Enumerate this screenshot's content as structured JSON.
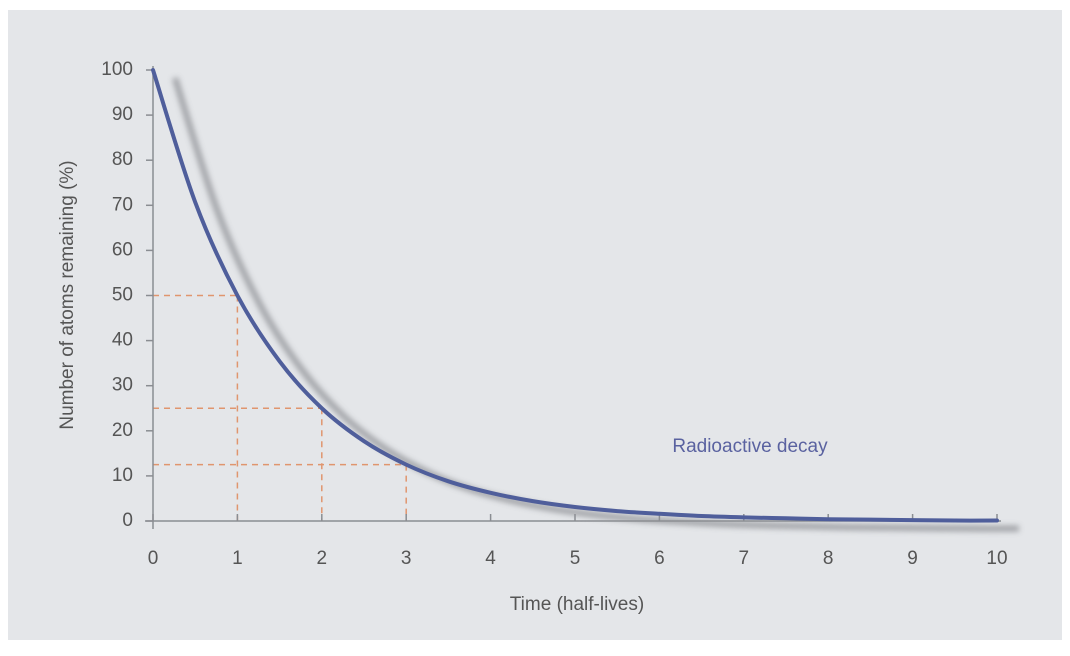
{
  "chart_data": {
    "type": "line",
    "xlabel": "Time (half-lives)",
    "ylabel": "Number of atoms remaining (%)",
    "annotation": "Radioactive decay",
    "x": [
      0,
      0.5,
      1,
      1.5,
      2,
      2.5,
      3,
      3.5,
      4,
      4.5,
      5,
      5.5,
      6,
      6.5,
      7,
      7.5,
      8,
      8.5,
      9,
      9.5,
      10
    ],
    "series": [
      {
        "name": "Radioactive decay",
        "color": "#4f5e9b",
        "values": [
          100,
          70.7,
          50,
          35.4,
          25,
          17.7,
          12.5,
          8.8,
          6.25,
          4.4,
          3.1,
          2.2,
          1.6,
          1.1,
          0.8,
          0.6,
          0.4,
          0.3,
          0.2,
          0.1,
          0.1
        ]
      }
    ],
    "guides": [
      {
        "x": 1,
        "y": 50
      },
      {
        "x": 2,
        "y": 25
      },
      {
        "x": 3,
        "y": 12.5
      }
    ],
    "guide_color": "#e0956e",
    "xlim": [
      0,
      10
    ],
    "xticks": [
      0,
      1,
      2,
      3,
      4,
      5,
      6,
      7,
      8,
      9,
      10
    ],
    "ylim": [
      0,
      100
    ],
    "yticks": [
      0,
      10,
      20,
      30,
      40,
      50,
      60,
      70,
      80,
      90,
      100
    ]
  }
}
